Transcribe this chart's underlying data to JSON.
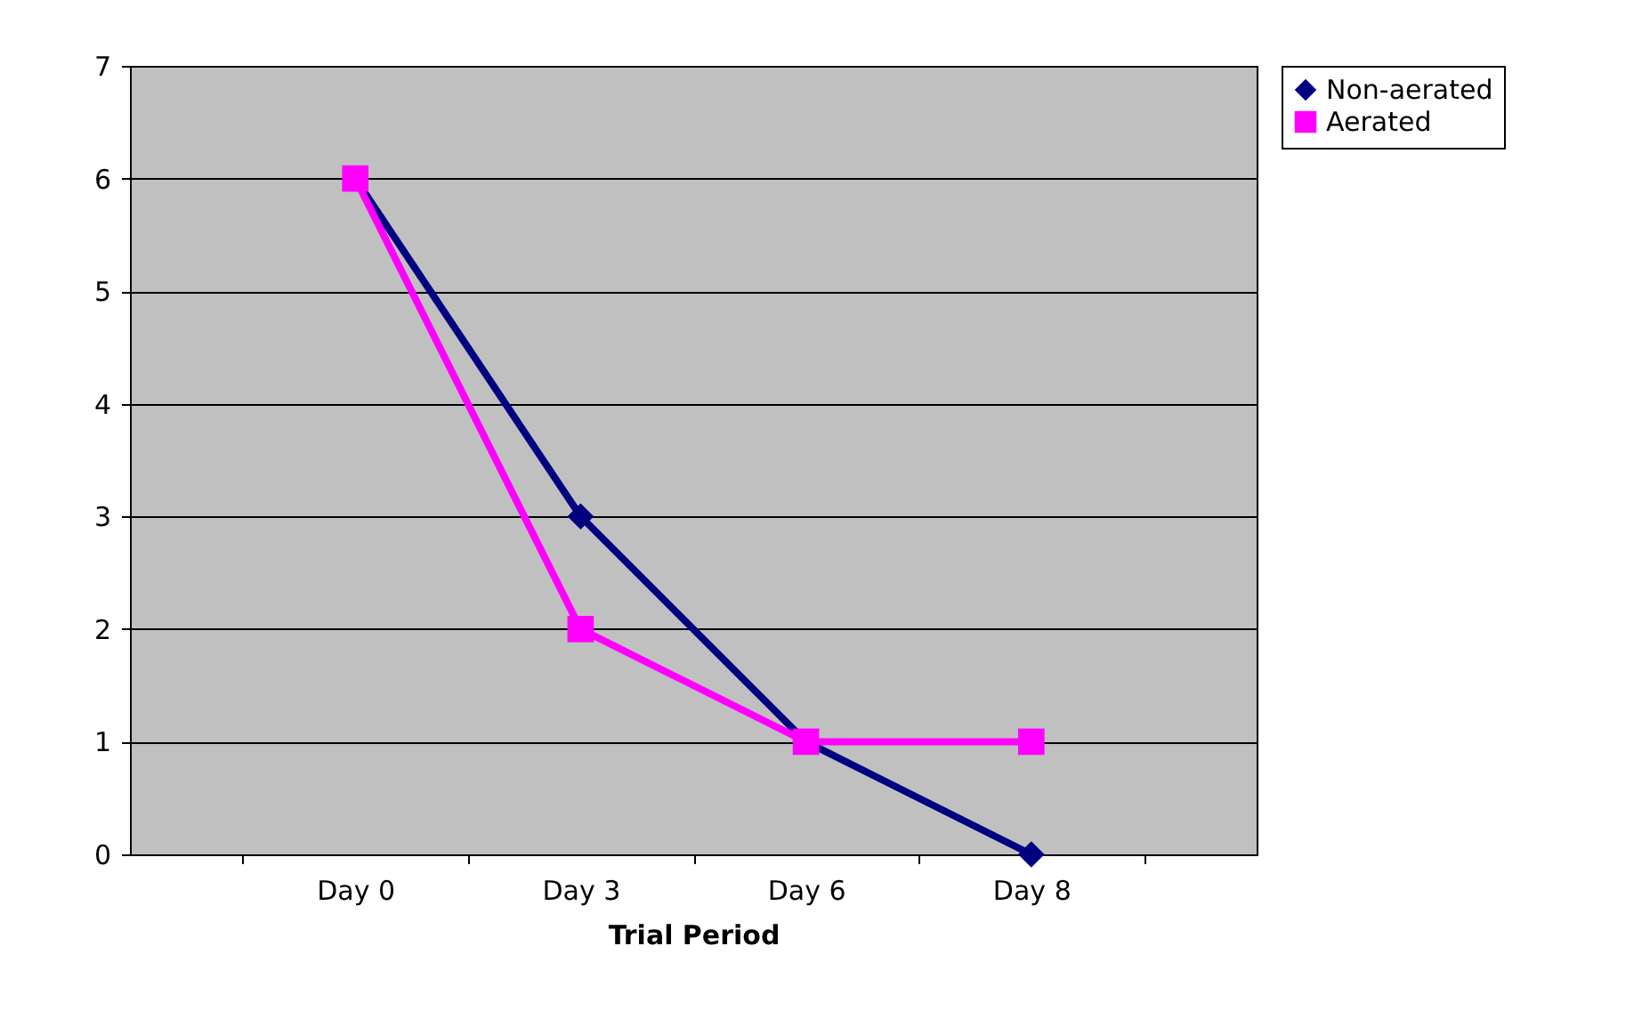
{
  "chart_data": {
    "type": "line",
    "xlabel": "Trial Period",
    "categories": [
      "Day 0",
      "Day 3",
      "Day 6",
      "Day 8"
    ],
    "series": [
      {
        "name": "Non-aerated",
        "color": "#000080",
        "marker": "diamond",
        "values": [
          6,
          3,
          1,
          0
        ]
      },
      {
        "name": "Aerated",
        "color": "#ff00ff",
        "marker": "square",
        "values": [
          6,
          2,
          1,
          1
        ]
      }
    ],
    "ylim": [
      0,
      7
    ],
    "yticks": [
      0,
      1,
      2,
      3,
      4,
      5,
      6,
      7
    ],
    "grid": "y",
    "legend": "right",
    "line_style": "solid"
  }
}
